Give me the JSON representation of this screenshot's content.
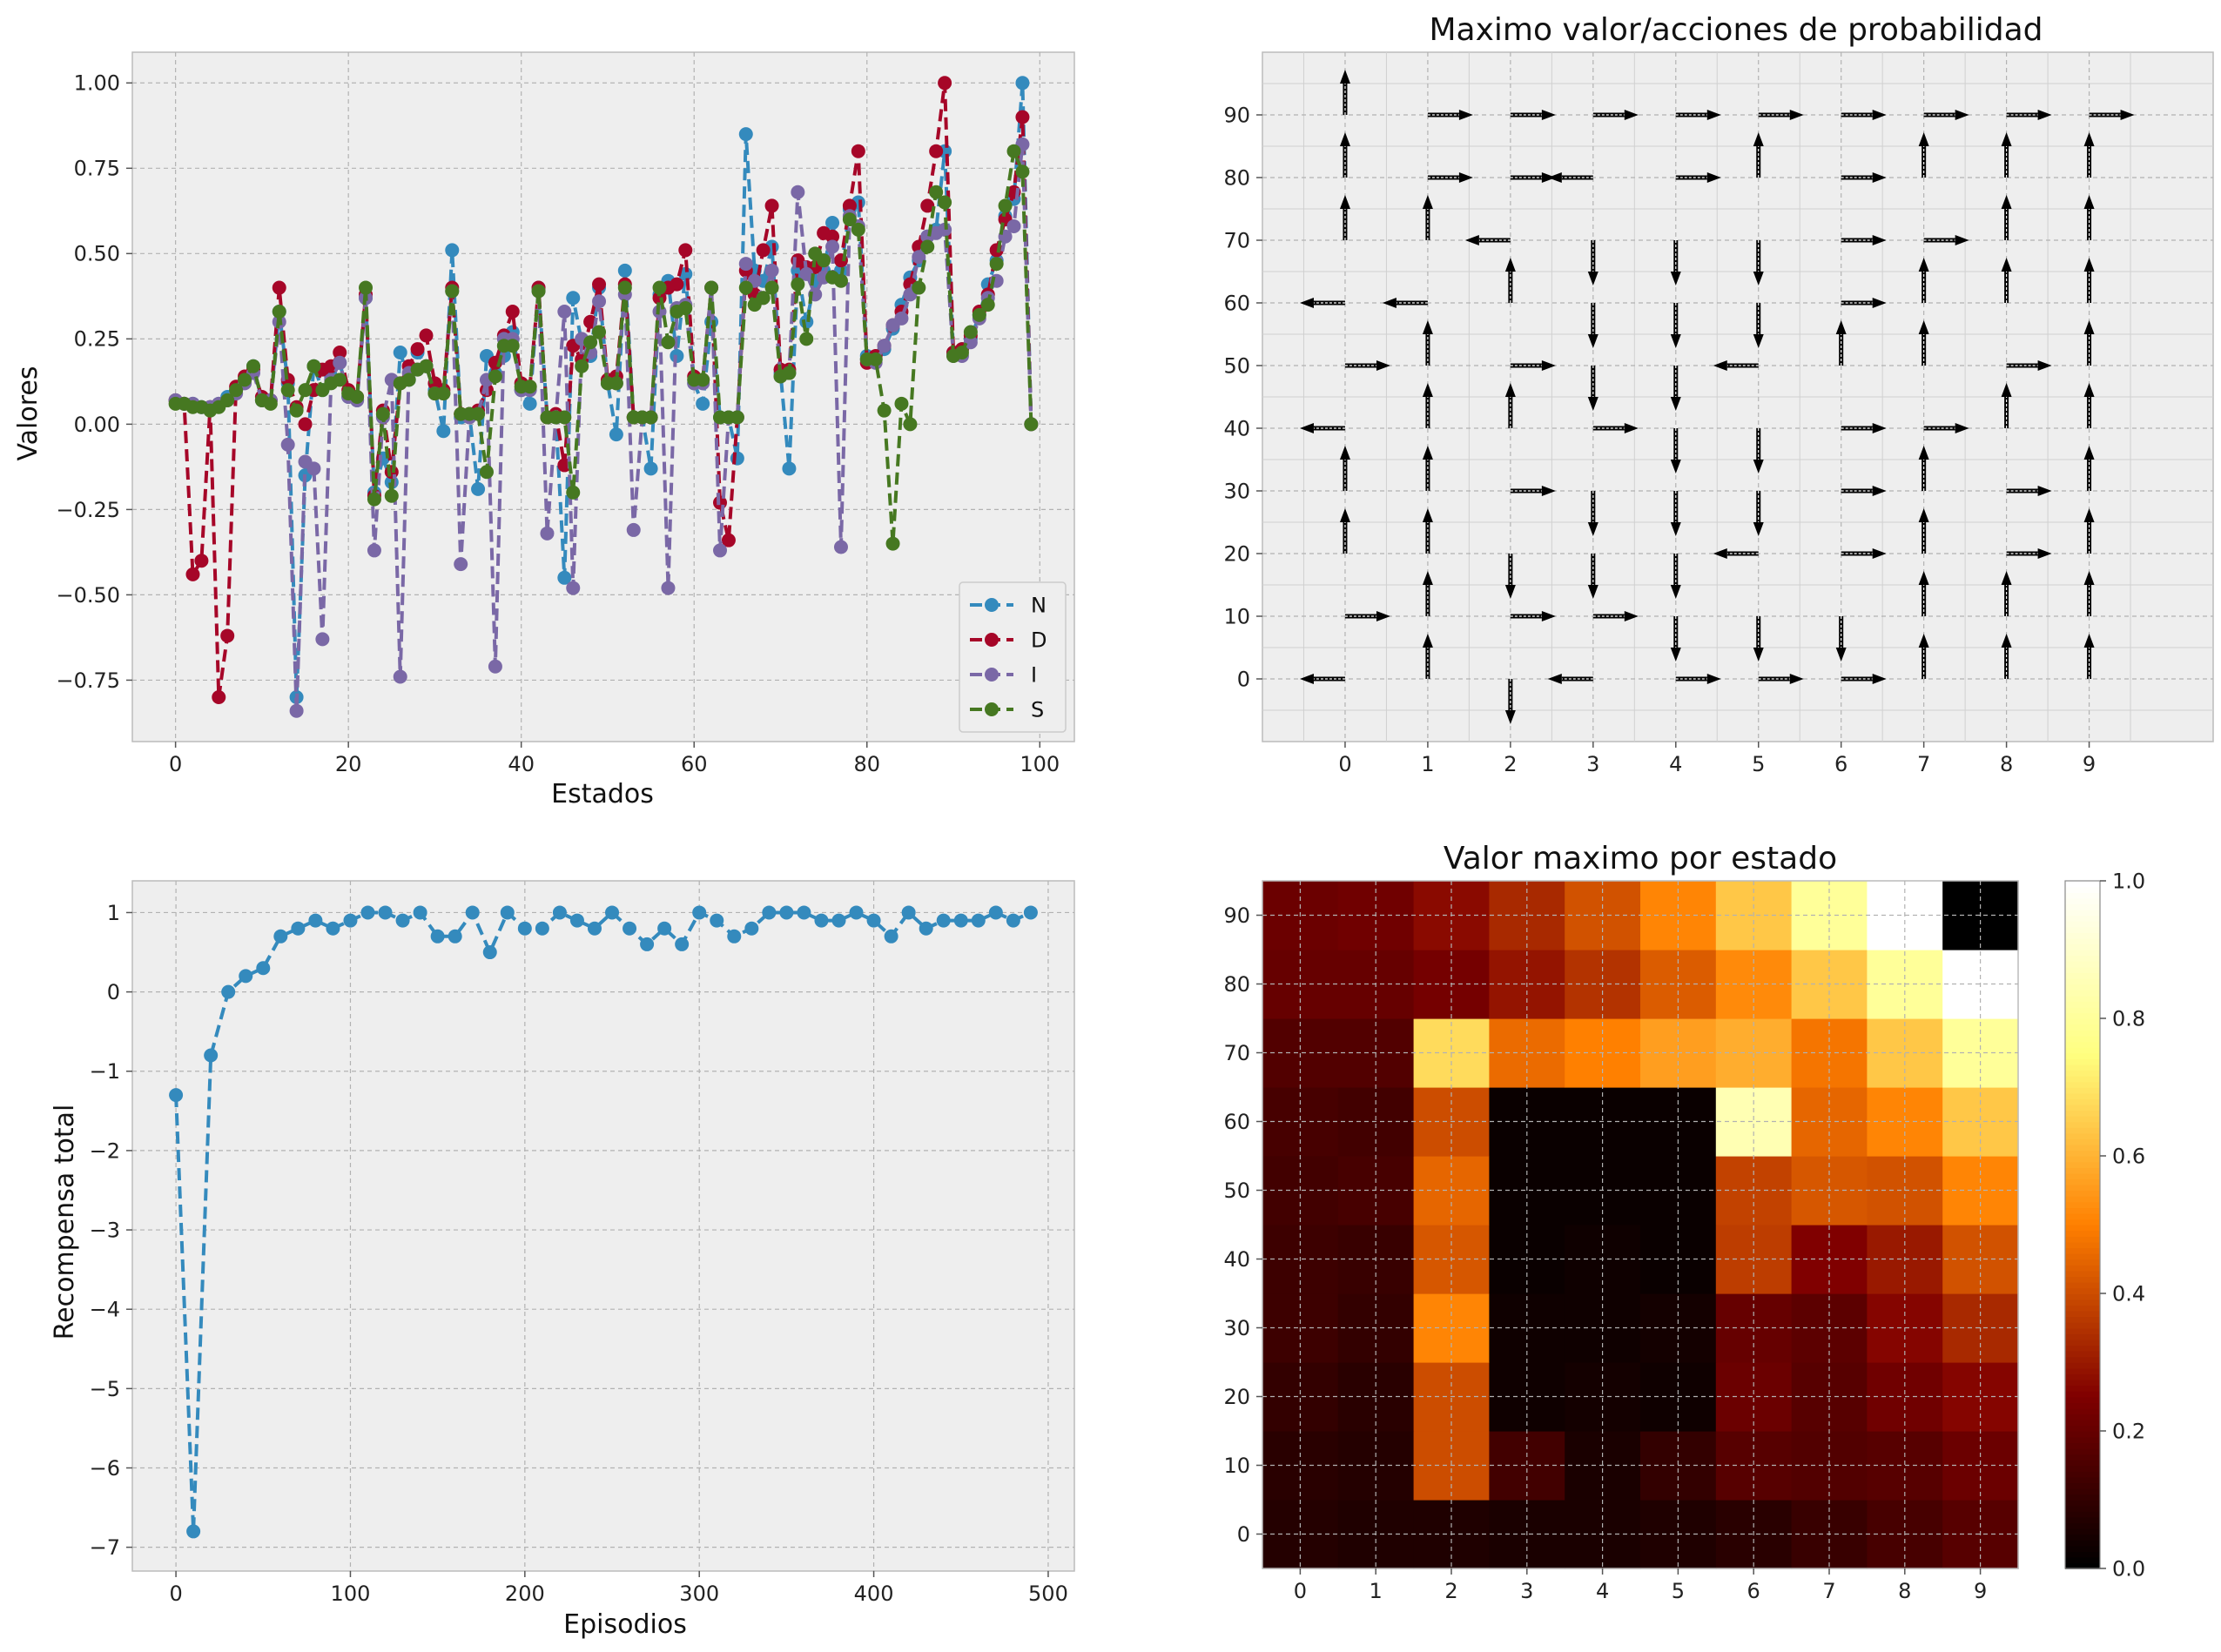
{
  "colors": {
    "axes_bg": "#EEEEEE",
    "grid": "#B2B2B2",
    "series": [
      "#348ABD",
      "#A60628",
      "#7A68A6",
      "#467821"
    ],
    "arrow": "#000000"
  },
  "chart_data": [
    {
      "id": "values",
      "type": "line",
      "title": "",
      "xlabel": "Estados",
      "ylabel": "Valores",
      "xlim": [
        -5,
        104
      ],
      "ylim": [
        -0.93,
        1.09
      ],
      "xticks": [
        0,
        20,
        40,
        60,
        80,
        100
      ],
      "yticks": [
        -0.75,
        -0.5,
        -0.25,
        0.0,
        0.25,
        0.5,
        0.75,
        1.0
      ],
      "ytick_labels": [
        "−0.75",
        "−0.50",
        "−0.25",
        "0.00",
        "0.25",
        "0.50",
        "0.75",
        "1.00"
      ],
      "legend": {
        "position": "lower-right",
        "entries": [
          "N",
          "D",
          "I",
          "S"
        ]
      },
      "grid": true,
      "line_style": "dashed",
      "marker": "circle",
      "series": [
        {
          "name": "N",
          "color": "#348ABD",
          "values": [
            0.07,
            0.06,
            0.06,
            0.05,
            0.05,
            0.06,
            0.08,
            0.1,
            0.13,
            0.17,
            0.07,
            0.07,
            0.33,
            0.12,
            -0.8,
            -0.15,
            0.17,
            0.1,
            0.14,
            0.18,
            0.08,
            0.07,
            0.37,
            -0.2,
            -0.1,
            -0.17,
            0.21,
            0.13,
            0.21,
            0.17,
            0.1,
            -0.02,
            0.51,
            0.02,
            0.03,
            -0.19,
            0.2,
            0.15,
            0.2,
            0.27,
            0.1,
            0.06,
            0.4,
            0.02,
            0.02,
            -0.45,
            0.37,
            0.24,
            0.2,
            0.4,
            0.12,
            -0.03,
            0.45,
            0.02,
            0.02,
            -0.13,
            0.38,
            0.42,
            0.2,
            0.44,
            0.12,
            0.06,
            0.3,
            0.02,
            0.02,
            -0.1,
            0.85,
            0.45,
            0.42,
            0.52,
            0.15,
            -0.13,
            0.45,
            0.3,
            0.42,
            0.45,
            0.59,
            0.45,
            0.63,
            0.65,
            0.2,
            0.19,
            0.22,
            0.28,
            0.35,
            0.43,
            0.48,
            0.55,
            0.57,
            0.8,
            0.21,
            0.22,
            0.25,
            0.32,
            0.41,
            0.48,
            0.61,
            0.66,
            1.0,
            0.0
          ]
        },
        {
          "name": "D",
          "color": "#A60628",
          "values": [
            0.07,
            0.06,
            -0.44,
            -0.4,
            0.05,
            -0.8,
            -0.62,
            0.11,
            0.14,
            0.16,
            0.08,
            0.07,
            0.4,
            0.13,
            0.05,
            0.0,
            0.1,
            0.16,
            0.17,
            0.21,
            0.1,
            0.08,
            0.38,
            -0.21,
            0.04,
            -0.14,
            0.12,
            0.17,
            0.22,
            0.26,
            0.12,
            0.1,
            0.4,
            0.03,
            0.03,
            0.04,
            0.1,
            0.18,
            0.26,
            0.33,
            0.12,
            0.11,
            0.4,
            0.02,
            0.03,
            -0.12,
            0.23,
            0.19,
            0.3,
            0.41,
            0.13,
            0.14,
            0.41,
            0.02,
            0.02,
            0.02,
            0.37,
            0.4,
            0.41,
            0.51,
            0.14,
            0.13,
            0.4,
            -0.23,
            -0.34,
            0.02,
            0.45,
            0.38,
            0.51,
            0.64,
            0.16,
            0.16,
            0.48,
            0.46,
            0.46,
            0.56,
            0.55,
            0.48,
            0.64,
            0.8,
            0.18,
            0.2,
            0.23,
            0.29,
            0.33,
            0.41,
            0.52,
            0.64,
            0.8,
            1.0,
            0.21,
            0.22,
            0.26,
            0.33,
            0.38,
            0.51,
            0.6,
            0.68,
            0.9,
            0.0
          ]
        },
        {
          "name": "I",
          "color": "#7A68A6",
          "values": [
            0.07,
            0.06,
            0.06,
            0.05,
            0.05,
            0.06,
            0.07,
            0.09,
            0.12,
            0.15,
            0.07,
            0.07,
            0.3,
            -0.06,
            -0.84,
            -0.11,
            -0.13,
            -0.63,
            0.13,
            0.18,
            0.08,
            0.07,
            0.37,
            -0.37,
            0.02,
            0.13,
            -0.74,
            0.15,
            0.16,
            0.17,
            0.09,
            0.09,
            0.39,
            -0.41,
            0.02,
            0.03,
            0.13,
            -0.71,
            0.25,
            0.25,
            0.1,
            0.1,
            0.39,
            -0.32,
            0.02,
            0.33,
            -0.48,
            0.25,
            0.21,
            0.36,
            0.12,
            0.12,
            0.38,
            -0.31,
            0.02,
            0.02,
            0.33,
            -0.48,
            0.34,
            0.35,
            0.12,
            0.12,
            0.4,
            -0.37,
            0.02,
            0.02,
            0.47,
            0.42,
            0.37,
            0.45,
            0.14,
            0.15,
            0.68,
            0.44,
            0.38,
            0.43,
            0.52,
            -0.36,
            0.61,
            0.58,
            0.19,
            0.18,
            0.23,
            0.29,
            0.31,
            0.38,
            0.49,
            0.55,
            0.56,
            0.57,
            0.2,
            0.2,
            0.24,
            0.31,
            0.37,
            0.42,
            0.55,
            0.58,
            0.82,
            0.0
          ]
        },
        {
          "name": "S",
          "color": "#467821",
          "values": [
            0.06,
            0.06,
            0.05,
            0.05,
            0.04,
            0.05,
            0.07,
            0.1,
            0.13,
            0.17,
            0.07,
            0.06,
            0.33,
            0.1,
            0.04,
            0.1,
            0.17,
            0.1,
            0.12,
            0.13,
            0.09,
            0.08,
            0.4,
            -0.22,
            0.03,
            -0.21,
            0.12,
            0.13,
            0.16,
            0.17,
            0.09,
            0.09,
            0.39,
            0.03,
            0.03,
            0.03,
            -0.14,
            0.14,
            0.23,
            0.23,
            0.11,
            0.11,
            0.39,
            0.02,
            0.02,
            0.02,
            -0.2,
            0.17,
            0.24,
            0.27,
            0.12,
            0.12,
            0.4,
            0.02,
            0.02,
            0.02,
            0.4,
            0.24,
            0.33,
            0.34,
            0.13,
            0.13,
            0.4,
            0.02,
            0.02,
            0.02,
            0.4,
            0.35,
            0.37,
            0.4,
            0.14,
            0.15,
            0.41,
            0.25,
            0.5,
            0.48,
            0.43,
            0.42,
            0.6,
            0.57,
            0.19,
            0.19,
            0.04,
            -0.35,
            0.06,
            0.0,
            0.4,
            0.52,
            0.68,
            0.65,
            0.2,
            0.21,
            0.27,
            0.32,
            0.35,
            0.47,
            0.64,
            0.8,
            0.74,
            0.0
          ]
        }
      ]
    },
    {
      "id": "policy",
      "type": "quiver",
      "title": "Maximo valor/acciones de probabilidad",
      "xlim": [
        -1,
        10.5
      ],
      "ylim": [
        -10,
        100
      ],
      "xticks": [
        0,
        1,
        2,
        3,
        4,
        5,
        6,
        7,
        8,
        9
      ],
      "yticks": [
        0,
        10,
        20,
        30,
        40,
        50,
        60,
        70,
        80,
        90
      ],
      "grid": true,
      "legend_dirs": {
        "N": "up",
        "D": "right",
        "I": "left",
        "S": "down"
      },
      "actions_rows_bottom_to_top": [
        [
          "I",
          "N",
          "S",
          "I",
          "D",
          "D",
          "D",
          "N",
          "N",
          "N"
        ],
        [
          "D",
          "N",
          "D",
          "D",
          "S",
          "S",
          "S",
          "N",
          "N",
          "N"
        ],
        [
          "N",
          "N",
          "S",
          "S",
          "S",
          "I",
          "D",
          "N",
          "D",
          "N"
        ],
        [
          "N",
          "N",
          "D",
          "S",
          "S",
          "S",
          "D",
          "N",
          "D",
          "N"
        ],
        [
          "I",
          "N",
          "N",
          "D",
          "S",
          "S",
          "D",
          "D",
          "N",
          "N"
        ],
        [
          "D",
          "N",
          "D",
          "S",
          "S",
          "I",
          "N",
          "N",
          "D",
          "N"
        ],
        [
          "I",
          "I",
          "N",
          "S",
          "S",
          "S",
          "D",
          "N",
          "N",
          "N"
        ],
        [
          "N",
          "N",
          "I",
          "S",
          "S",
          "S",
          "D",
          "D",
          "N",
          "N"
        ],
        [
          "N",
          "D",
          "D",
          "I",
          "D",
          "N",
          "D",
          "N",
          "N",
          "N"
        ],
        [
          "N",
          "D",
          "D",
          "D",
          "D",
          "D",
          "D",
          "D",
          "D",
          "D"
        ]
      ]
    },
    {
      "id": "rewards",
      "type": "line",
      "title": "",
      "xlabel": "Episodios",
      "ylabel": "Recompensa total",
      "xlim": [
        -25,
        515
      ],
      "ylim": [
        -7.3,
        1.4
      ],
      "xticks": [
        0,
        100,
        200,
        300,
        400,
        500
      ],
      "yticks": [
        -7,
        -6,
        -5,
        -4,
        -3,
        -2,
        -1,
        0,
        1
      ],
      "ytick_labels": [
        "−7",
        "−6",
        "−5",
        "−4",
        "−3",
        "−2",
        "−1",
        "0",
        "1"
      ],
      "grid": true,
      "line_style": "dashed",
      "marker": "circle",
      "series": [
        {
          "color": "#348ABD",
          "x": [
            0,
            10,
            20,
            30,
            40,
            50,
            60,
            70,
            80,
            90,
            100,
            110,
            120,
            130,
            140,
            150,
            160,
            170,
            180,
            190,
            200,
            210,
            220,
            230,
            240,
            250,
            260,
            270,
            280,
            290,
            300,
            310,
            320,
            330,
            340,
            350,
            360,
            370,
            380,
            390,
            400,
            410,
            420,
            430,
            440,
            450,
            460,
            470,
            480,
            490
          ],
          "values": [
            -1.3,
            -6.8,
            -0.8,
            0.0,
            0.2,
            0.3,
            0.7,
            0.8,
            0.9,
            0.8,
            0.9,
            1.0,
            1.0,
            0.9,
            1.0,
            0.7,
            0.7,
            1.0,
            0.5,
            1.0,
            0.8,
            0.8,
            1.0,
            0.9,
            0.8,
            1.0,
            0.8,
            0.6,
            0.8,
            0.6,
            1.0,
            0.9,
            0.7,
            0.8,
            1.0,
            1.0,
            1.0,
            0.9,
            0.9,
            1.0,
            0.9,
            0.7,
            1.0,
            0.8,
            0.9,
            0.9,
            0.9,
            1.0,
            0.9,
            1.0
          ]
        }
      ]
    },
    {
      "id": "heatmap",
      "type": "heatmap",
      "title": "Valor maximo por estado",
      "xticks": [
        0,
        1,
        2,
        3,
        4,
        5,
        6,
        7,
        8,
        9
      ],
      "yticks": [
        0,
        10,
        20,
        30,
        40,
        50,
        60,
        70,
        80,
        90
      ],
      "colormap": "afmhot",
      "colorbar": {
        "min": 0.0,
        "max": 1.0,
        "ticks": [
          "0.0",
          "0.2",
          "0.4",
          "0.6",
          "0.8",
          "1.0"
        ]
      },
      "grid": true,
      "values_rows_bottom_to_top": [
        [
          0.07,
          0.06,
          0.06,
          0.05,
          0.05,
          0.06,
          0.08,
          0.11,
          0.14,
          0.17
        ],
        [
          0.08,
          0.07,
          0.4,
          0.13,
          0.05,
          0.1,
          0.17,
          0.16,
          0.17,
          0.21
        ],
        [
          0.1,
          0.08,
          0.4,
          0.03,
          0.04,
          0.03,
          0.21,
          0.17,
          0.22,
          0.26
        ],
        [
          0.12,
          0.1,
          0.51,
          0.03,
          0.03,
          0.04,
          0.2,
          0.18,
          0.26,
          0.33
        ],
        [
          0.12,
          0.11,
          0.42,
          0.02,
          0.03,
          0.02,
          0.37,
          0.25,
          0.3,
          0.41
        ],
        [
          0.13,
          0.14,
          0.45,
          0.02,
          0.02,
          0.02,
          0.38,
          0.42,
          0.41,
          0.51
        ],
        [
          0.14,
          0.13,
          0.4,
          0.02,
          0.02,
          0.02,
          0.85,
          0.45,
          0.51,
          0.64
        ],
        [
          0.16,
          0.16,
          0.68,
          0.46,
          0.5,
          0.56,
          0.59,
          0.48,
          0.64,
          0.8
        ],
        [
          0.2,
          0.2,
          0.23,
          0.29,
          0.35,
          0.43,
          0.52,
          0.64,
          0.8,
          1.0
        ],
        [
          0.21,
          0.22,
          0.27,
          0.33,
          0.41,
          0.51,
          0.64,
          0.8,
          1.0,
          0.0
        ]
      ]
    }
  ]
}
